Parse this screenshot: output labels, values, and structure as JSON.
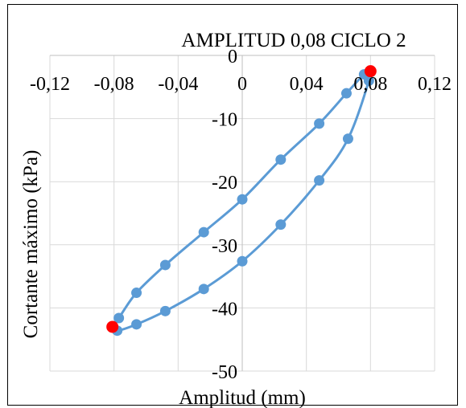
{
  "chart_data": {
    "type": "scatter",
    "title": "AMPLITUD 0,08 CICLO 2",
    "xlabel": "Amplitud (mm)",
    "ylabel": "Cortante máximo (kPa)",
    "xlim": [
      -0.12,
      0.12
    ],
    "ylim": [
      -50,
      0
    ],
    "grid": true,
    "x_ticks": [
      -0.12,
      -0.08,
      -0.04,
      0,
      0.04,
      0.08,
      0.12
    ],
    "x_tick_labels": [
      "-0,12",
      "-0,08",
      "-0,04",
      "0",
      "0,04",
      "0,08",
      "0,12"
    ],
    "y_ticks": [
      0,
      -10,
      -20,
      -30,
      -40,
      -50
    ],
    "y_tick_labels": [
      "0",
      "-10",
      "-20",
      "-30",
      "-40",
      "-50"
    ],
    "series_color": "#5b9bd5",
    "highlight_color": "#ff0000",
    "series": [
      {
        "values": [
          [
            0.078,
            -3.0
          ],
          [
            0.079,
            -4.0
          ],
          [
            0.066,
            -13.2
          ],
          [
            0.048,
            -19.8
          ],
          [
            0.024,
            -26.8
          ],
          [
            0.0,
            -32.6
          ],
          [
            -0.024,
            -37.0
          ],
          [
            -0.048,
            -40.5
          ],
          [
            -0.066,
            -42.6
          ],
          [
            -0.078,
            -43.6
          ],
          [
            -0.081,
            -43.0
          ],
          [
            -0.077,
            -41.6
          ],
          [
            -0.066,
            -37.6
          ],
          [
            -0.048,
            -33.2
          ],
          [
            -0.024,
            -28.0
          ],
          [
            0.0,
            -22.8
          ],
          [
            0.024,
            -16.5
          ],
          [
            0.048,
            -10.8
          ],
          [
            0.065,
            -6.0
          ],
          [
            0.076,
            -3.0
          ],
          [
            0.08,
            -2.5
          ]
        ]
      }
    ],
    "highlights": [
      [
        0.08,
        -2.5
      ],
      [
        -0.081,
        -43.0
      ]
    ]
  }
}
